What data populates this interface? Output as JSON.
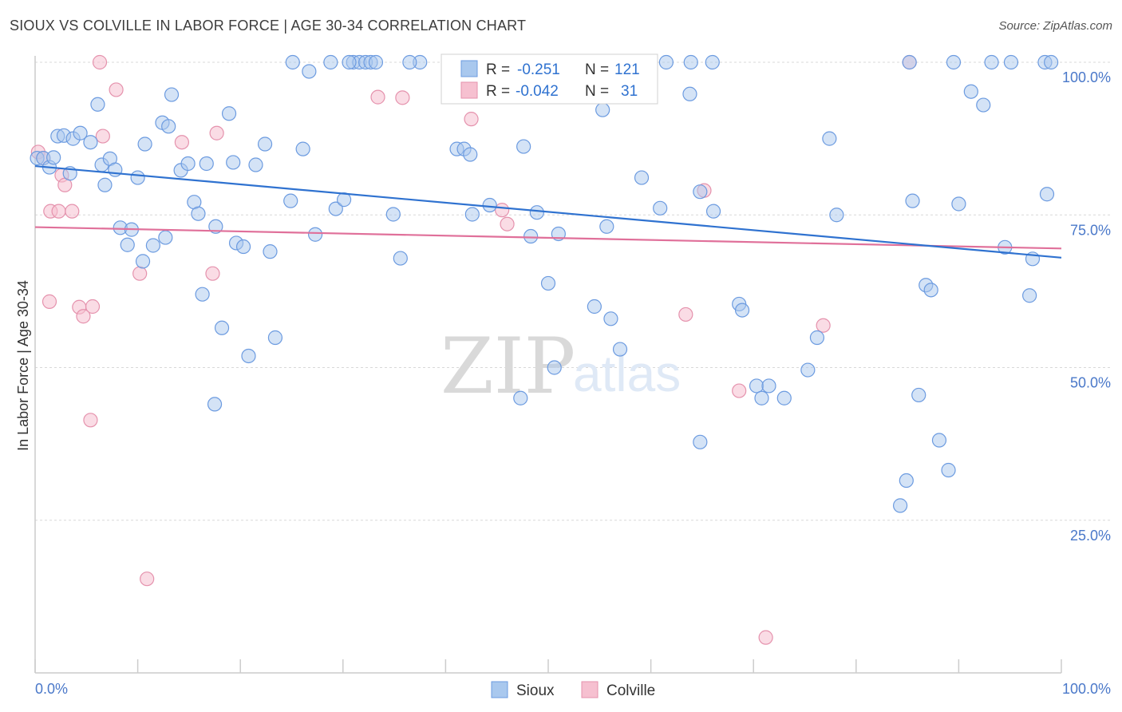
{
  "header": {
    "title": "SIOUX VS COLVILLE IN LABOR FORCE | AGE 30-34 CORRELATION CHART",
    "source": "Source: ZipAtlas.com"
  },
  "watermark": {
    "zip": "ZIP",
    "atlas": "atlas"
  },
  "colors": {
    "sioux_fill": "#a9c8ee",
    "sioux_stroke": "#6c9be0",
    "sioux_line": "#2f72d0",
    "colville_fill": "#f6c0d0",
    "colville_stroke": "#e592ad",
    "colville_line": "#e0709a",
    "axis_label": "#4a78c9",
    "grid": "#d8d8d8"
  },
  "legend_top": {
    "rows": [
      {
        "r_label": "R =",
        "r_value": "-0.251",
        "n_label": "N =",
        "n_value": "121"
      },
      {
        "r_label": "R =",
        "r_value": "-0.042",
        "n_label": "N =",
        "n_value": "31"
      }
    ]
  },
  "legend_bottom": {
    "items": [
      "Sioux",
      "Colville"
    ]
  },
  "chart_data": {
    "type": "scatter",
    "title": "SIOUX VS COLVILLE IN LABOR FORCE | AGE 30-34 CORRELATION CHART",
    "xlabel": "",
    "ylabel": "In Labor Force | Age 30-34",
    "xlim": [
      0,
      100
    ],
    "ylim": [
      0,
      100
    ],
    "x_tick_labels": [
      "0.0%",
      "100.0%"
    ],
    "y_tick_labels": [
      "100.0%",
      "75.0%",
      "50.0%",
      "25.0%"
    ],
    "y_ticks": [
      100,
      75,
      50,
      25
    ],
    "grid": true,
    "series": [
      {
        "name": "Sioux",
        "r": -0.251,
        "n": 121,
        "trend": {
          "x": [
            0,
            100
          ],
          "y": [
            83.0,
            68.0
          ]
        },
        "points": [
          [
            0.2,
            84.3
          ],
          [
            0.8,
            84.3
          ],
          [
            1.4,
            82.8
          ],
          [
            1.8,
            84.4
          ],
          [
            2.2,
            87.9
          ],
          [
            2.8,
            88.0
          ],
          [
            3.7,
            87.5
          ],
          [
            4.4,
            88.4
          ],
          [
            3.4,
            81.8
          ],
          [
            5.4,
            86.9
          ],
          [
            6.1,
            93.1
          ],
          [
            6.5,
            83.2
          ],
          [
            6.8,
            79.9
          ],
          [
            7.3,
            84.2
          ],
          [
            7.8,
            82.4
          ],
          [
            8.3,
            72.9
          ],
          [
            9.0,
            70.1
          ],
          [
            9.4,
            72.6
          ],
          [
            10.0,
            81.1
          ],
          [
            10.5,
            67.4
          ],
          [
            10.7,
            86.6
          ],
          [
            11.5,
            70.0
          ],
          [
            12.7,
            71.3
          ],
          [
            12.4,
            90.1
          ],
          [
            13.0,
            89.5
          ],
          [
            13.3,
            94.7
          ],
          [
            14.2,
            82.3
          ],
          [
            14.9,
            83.4
          ],
          [
            15.5,
            77.1
          ],
          [
            15.9,
            75.2
          ],
          [
            16.3,
            62.0
          ],
          [
            16.7,
            83.4
          ],
          [
            17.6,
            73.1
          ],
          [
            17.5,
            44.0
          ],
          [
            18.2,
            56.5
          ],
          [
            18.9,
            91.6
          ],
          [
            19.3,
            83.6
          ],
          [
            19.6,
            70.4
          ],
          [
            20.3,
            69.8
          ],
          [
            20.8,
            51.9
          ],
          [
            21.5,
            83.2
          ],
          [
            22.4,
            86.6
          ],
          [
            22.9,
            69.0
          ],
          [
            23.4,
            54.9
          ],
          [
            24.9,
            77.3
          ],
          [
            25.1,
            100.0
          ],
          [
            26.1,
            85.8
          ],
          [
            26.7,
            98.5
          ],
          [
            27.3,
            71.8
          ],
          [
            28.8,
            100.0
          ],
          [
            29.3,
            76.0
          ],
          [
            30.1,
            77.5
          ],
          [
            31.0,
            100.0
          ],
          [
            31.6,
            100.0
          ],
          [
            32.2,
            100.0
          ],
          [
            32.7,
            100.0
          ],
          [
            33.2,
            100.0
          ],
          [
            34.9,
            75.1
          ],
          [
            35.6,
            67.9
          ],
          [
            37.5,
            100.0
          ],
          [
            41.1,
            85.8
          ],
          [
            41.8,
            85.8
          ],
          [
            42.4,
            84.9
          ],
          [
            42.6,
            75.1
          ],
          [
            44.3,
            76.6
          ],
          [
            47.0,
            100.0
          ],
          [
            47.3,
            45.0
          ],
          [
            47.6,
            86.2
          ],
          [
            48.3,
            71.5
          ],
          [
            48.9,
            75.4
          ],
          [
            50.0,
            63.8
          ],
          [
            50.6,
            50.0
          ],
          [
            51.0,
            71.9
          ],
          [
            54.5,
            60.0
          ],
          [
            55.3,
            92.2
          ],
          [
            55.7,
            73.1
          ],
          [
            56.1,
            58.0
          ],
          [
            57.0,
            53.0
          ],
          [
            59.1,
            81.1
          ],
          [
            60.9,
            76.1
          ],
          [
            61.5,
            100.0
          ],
          [
            63.8,
            94.8
          ],
          [
            64.8,
            78.8
          ],
          [
            64.8,
            37.8
          ],
          [
            66.0,
            100.0
          ],
          [
            66.1,
            75.6
          ],
          [
            68.6,
            60.4
          ],
          [
            68.9,
            59.4
          ],
          [
            70.3,
            47.0
          ],
          [
            70.8,
            45.0
          ],
          [
            71.5,
            47.0
          ],
          [
            73.0,
            45.0
          ],
          [
            75.3,
            49.6
          ],
          [
            76.2,
            54.9
          ],
          [
            77.4,
            87.5
          ],
          [
            78.1,
            75.0
          ],
          [
            84.3,
            27.4
          ],
          [
            84.9,
            31.5
          ],
          [
            85.2,
            100.0
          ],
          [
            85.5,
            77.3
          ],
          [
            86.1,
            45.5
          ],
          [
            86.8,
            63.5
          ],
          [
            87.3,
            62.7
          ],
          [
            88.1,
            38.1
          ],
          [
            89.0,
            33.2
          ],
          [
            89.5,
            100.0
          ],
          [
            90.0,
            76.8
          ],
          [
            91.2,
            95.2
          ],
          [
            92.4,
            93.0
          ],
          [
            93.2,
            100.0
          ],
          [
            94.5,
            69.7
          ],
          [
            95.1,
            100.0
          ],
          [
            96.9,
            61.8
          ],
          [
            97.2,
            67.8
          ],
          [
            98.4,
            100.0
          ],
          [
            98.6,
            78.4
          ],
          [
            99.0,
            100.0
          ],
          [
            30.6,
            100.0
          ],
          [
            36.5,
            100.0
          ],
          [
            56.4,
            100.0
          ],
          [
            63.9,
            100.0
          ]
        ]
      },
      {
        "name": "Colville",
        "r": -0.042,
        "n": 31,
        "trend": {
          "x": [
            0,
            100
          ],
          "y": [
            73.0,
            69.5
          ]
        },
        "points": [
          [
            0.3,
            85.3
          ],
          [
            0.8,
            84.3
          ],
          [
            1.4,
            60.8
          ],
          [
            1.5,
            75.6
          ],
          [
            2.3,
            75.6
          ],
          [
            2.6,
            81.5
          ],
          [
            2.9,
            79.9
          ],
          [
            3.6,
            75.6
          ],
          [
            4.3,
            59.9
          ],
          [
            4.7,
            58.4
          ],
          [
            5.4,
            41.4
          ],
          [
            5.6,
            60.0
          ],
          [
            6.3,
            100.0
          ],
          [
            6.6,
            87.9
          ],
          [
            7.9,
            95.5
          ],
          [
            10.2,
            65.4
          ],
          [
            10.9,
            15.4
          ],
          [
            14.3,
            86.9
          ],
          [
            17.3,
            65.4
          ],
          [
            17.7,
            88.4
          ],
          [
            33.4,
            94.3
          ],
          [
            35.8,
            94.2
          ],
          [
            42.5,
            90.7
          ],
          [
            45.5,
            75.8
          ],
          [
            46.0,
            73.5
          ],
          [
            63.4,
            58.7
          ],
          [
            65.2,
            79.0
          ],
          [
            68.6,
            46.2
          ],
          [
            71.2,
            5.8
          ],
          [
            76.8,
            56.9
          ],
          [
            85.2,
            100.0
          ]
        ]
      }
    ]
  }
}
